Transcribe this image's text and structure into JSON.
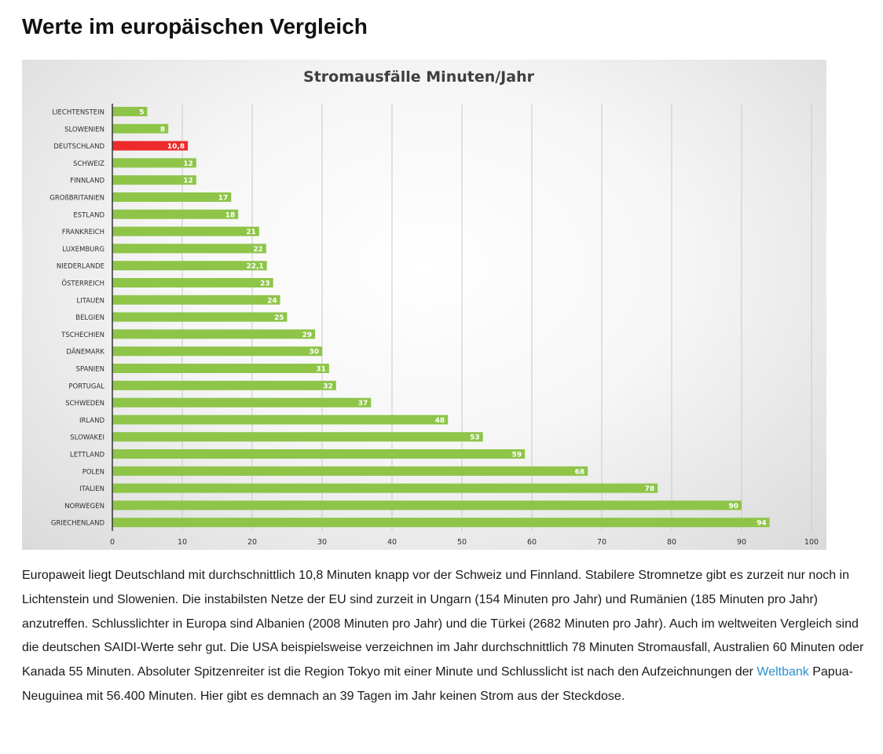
{
  "page": {
    "heading": "Werte im europäischen Vergleich"
  },
  "chart_data": {
    "type": "bar",
    "orientation": "horizontal",
    "title": "Stromausfälle Minuten/Jahr",
    "xlabel": "",
    "ylabel": "",
    "xlim": [
      0,
      100
    ],
    "x_ticks": [
      0,
      10,
      20,
      30,
      40,
      50,
      60,
      70,
      80,
      90,
      100
    ],
    "grid": true,
    "categories": [
      "LIECHTENSTEIN",
      "SLOWENIEN",
      "DEUTSCHLAND",
      "SCHWEIZ",
      "FINNLAND",
      "GROßBRITANIEN",
      "ESTLAND",
      "FRANKREICH",
      "LUXEMBURG",
      "NIEDERLANDE",
      "ÖSTERREICH",
      "LITAUEN",
      "BELGIEN",
      "TSCHECHIEN",
      "DÄNEMARK",
      "SPANIEN",
      "PORTUGAL",
      "SCHWEDEN",
      "IRLAND",
      "SLOWAKEI",
      "LETTLAND",
      "POLEN",
      "ITALIEN",
      "NORWEGEN",
      "GRIECHENLAND"
    ],
    "values": [
      5,
      8,
      10.8,
      12,
      12,
      17,
      18,
      21,
      22,
      22.1,
      23,
      24,
      25,
      29,
      30,
      31,
      32,
      37,
      48,
      53,
      59,
      68,
      78,
      90,
      94
    ],
    "value_labels": [
      "5",
      "8",
      "10,8",
      "12",
      "12",
      "17",
      "18",
      "21",
      "22",
      "22,1",
      "23",
      "24",
      "25",
      "29",
      "30",
      "31",
      "32",
      "37",
      "48",
      "53",
      "59",
      "68",
      "78",
      "90",
      "94"
    ],
    "highlight_index": 2,
    "colors": {
      "bar": "#8ec549",
      "highlight": "#ee2a2a",
      "grid": "#c9c9c9",
      "axis": "#333333",
      "title": "#3f3f3f",
      "label": "#2f2f2f"
    }
  },
  "article": {
    "paragraph_before_link": "Europaweit liegt Deutschland mit durchschnittlich 10,8 Minuten knapp vor der Schweiz und Finnland. Stabilere Stromnetze gibt es zurzeit nur noch in Lichtenstein und Slowenien. Die instabilsten Netze der EU sind zurzeit in Ungarn (154 Minuten pro Jahr) und Rumänien (185 Minuten pro Jahr) anzutreffen. Schlusslichter in Europa sind Albanien (2008 Minuten pro Jahr) und die Türkei (2682 Minuten pro Jahr). Auch im weltweiten Vergleich sind die deutschen SAIDI-Werte sehr gut. Die USA beispielsweise verzeichnen im Jahr durchschnittlich 78 Minuten Stromausfall, Australien 60 Minuten oder Kanada 55 Minuten. Absoluter Spitzenreiter ist die Region Tokyo mit einer Minute und Schlusslicht ist nach den Aufzeichnungen der ",
    "link_text": "Weltbank",
    "paragraph_after_link": " Papua-Neuguinea mit 56.400 Minuten. Hier gibt es demnach an 39 Tagen im Jahr keinen Strom aus der Steckdose.",
    "link_color": "#2a8fd0"
  }
}
